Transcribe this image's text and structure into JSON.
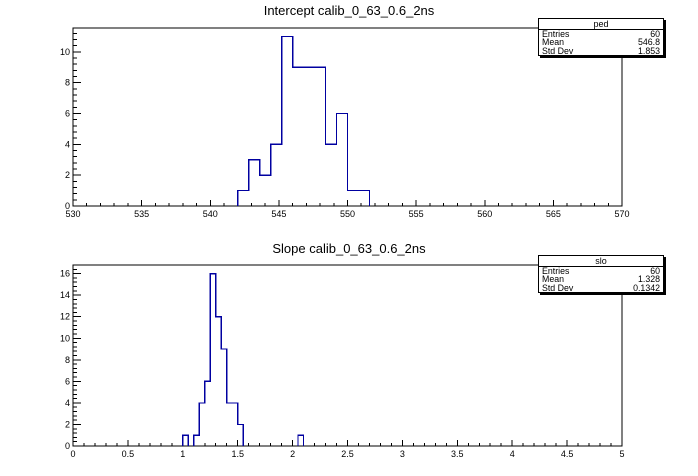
{
  "colors": {
    "background": "#ffffff",
    "hist_line": "#0000a0",
    "frame": "#000000",
    "text": "#000000"
  },
  "chart_data": [
    {
      "type": "bar",
      "subtype": "step-histogram-outline",
      "title": "Intercept calib_0_63_0.6_2ns",
      "xlabel": "",
      "ylabel": "",
      "xlim": [
        530,
        570
      ],
      "ylim": [
        0,
        11.55
      ],
      "grid": false,
      "bin_width": 0.8,
      "bins": [
        {
          "x": 542.0,
          "n": 1
        },
        {
          "x": 542.8,
          "n": 3
        },
        {
          "x": 543.6,
          "n": 2
        },
        {
          "x": 544.4,
          "n": 4
        },
        {
          "x": 545.2,
          "n": 11
        },
        {
          "x": 546.0,
          "n": 9
        },
        {
          "x": 546.8,
          "n": 9
        },
        {
          "x": 547.6,
          "n": 9
        },
        {
          "x": 548.4,
          "n": 4
        },
        {
          "x": 549.2,
          "n": 6
        },
        {
          "x": 550.0,
          "n": 1
        },
        {
          "x": 550.8,
          "n": 1
        }
      ],
      "x_tick_values": [
        530,
        535,
        540,
        545,
        550,
        555,
        560,
        565,
        570
      ],
      "x_tick_labels": [
        "530",
        "535",
        "540",
        "545",
        "550",
        "555",
        "560",
        "565",
        "570"
      ],
      "y_tick_values": [
        0,
        2,
        4,
        6,
        8,
        10
      ],
      "y_tick_labels": [
        "0",
        "2",
        "4",
        "6",
        "8",
        "10"
      ],
      "x_minor_step": 1,
      "y_minor_step": 0.4,
      "stats": {
        "title": "ped",
        "rows": [
          {
            "label": "Entries",
            "value": "60"
          },
          {
            "label": "Mean",
            "value": "546.8"
          },
          {
            "label": "Std Dev",
            "value": "1.853"
          }
        ]
      }
    },
    {
      "type": "bar",
      "subtype": "step-histogram-outline",
      "title": "Slope calib_0_63_0.6_2ns",
      "xlabel": "",
      "ylabel": "",
      "xlim": [
        0,
        5
      ],
      "ylim": [
        0,
        16.8
      ],
      "grid": false,
      "bin_width": 0.05,
      "bins": [
        {
          "x": 1.0,
          "n": 1
        },
        {
          "x": 1.1,
          "n": 1
        },
        {
          "x": 1.15,
          "n": 4
        },
        {
          "x": 1.2,
          "n": 6
        },
        {
          "x": 1.25,
          "n": 16
        },
        {
          "x": 1.3,
          "n": 12
        },
        {
          "x": 1.35,
          "n": 9
        },
        {
          "x": 1.4,
          "n": 4
        },
        {
          "x": 1.45,
          "n": 4
        },
        {
          "x": 1.5,
          "n": 2
        },
        {
          "x": 2.05,
          "n": 1
        }
      ],
      "x_tick_values": [
        0,
        0.5,
        1,
        1.5,
        2,
        2.5,
        3,
        3.5,
        4,
        4.5,
        5
      ],
      "x_tick_labels": [
        "0",
        "0.5",
        "1",
        "1.5",
        "2",
        "2.5",
        "3",
        "3.5",
        "4",
        "4.5",
        "5"
      ],
      "y_tick_values": [
        0,
        2,
        4,
        6,
        8,
        10,
        12,
        14,
        16
      ],
      "y_tick_labels": [
        "0",
        "2",
        "4",
        "6",
        "8",
        "10",
        "12",
        "14",
        "16"
      ],
      "x_minor_step": 0.1,
      "y_minor_step": 0.4,
      "stats": {
        "title": "slo",
        "rows": [
          {
            "label": "Entries",
            "value": "60"
          },
          {
            "label": "Mean",
            "value": "1.328"
          },
          {
            "label": "Std Dev",
            "value": "0.1342"
          }
        ]
      }
    }
  ]
}
